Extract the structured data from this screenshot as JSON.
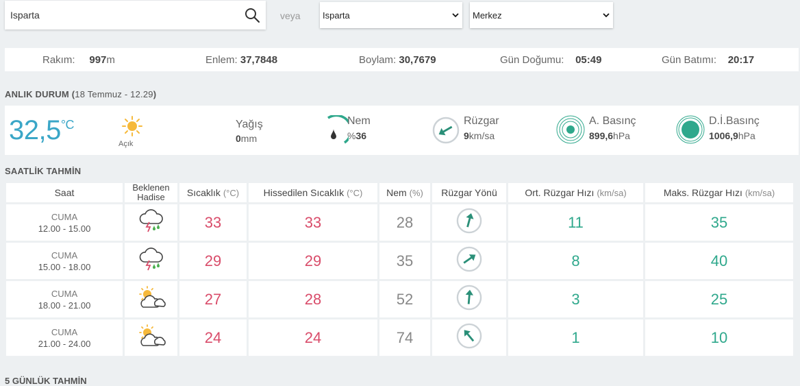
{
  "search": {
    "value": "Isparta"
  },
  "veya": "veya",
  "selects": {
    "province": "Isparta",
    "district": "Merkez"
  },
  "info": {
    "rakim_label": "Rakım:",
    "rakim_value": "997",
    "rakim_unit": "m",
    "enlem_label": "Enlem:",
    "enlem_value": "37,7848",
    "boylam_label": "Boylam:",
    "boylam_value": "30,7679",
    "dogum_label": "Gün Doğumu:",
    "dogum_value": "05:49",
    "batim_label": "Gün Batımı:",
    "batim_value": "20:17"
  },
  "current": {
    "heading": "ANLIK DURUM",
    "date": "18 Temmuz - 12.29",
    "temp": "32,5",
    "temp_unit": "°C",
    "condition": "Açık",
    "rain_label": "Yağış",
    "rain_value": "0",
    "rain_unit": "mm",
    "humidity_label": "Nem",
    "humidity_prefix": "%",
    "humidity_value": "36",
    "wind_label": "Rüzgar",
    "wind_value": "9",
    "wind_unit": "km/sa",
    "pressure_label": "A. Basınç",
    "pressure_value": "899,6",
    "pressure_unit": "hPa",
    "sea_pressure_label": "D.İ.Basınç",
    "sea_pressure_value": "1006,9",
    "sea_pressure_unit": "hPa"
  },
  "hourly": {
    "heading": "SAATLİK TAHMİN",
    "headers": {
      "saat": "Saat",
      "hadise": "Beklenen Hadise",
      "sicaklik": "Sıcaklık",
      "sicaklik_unit": "(°C)",
      "hissedilen": "Hissedilen Sıcaklık",
      "hissedilen_unit": "(°C)",
      "nem": "Nem",
      "nem_unit": "(%)",
      "yon": "Rüzgar Yönü",
      "ort": "Ort. Rüzgar Hızı",
      "ort_unit": "(km/sa)",
      "maks": "Maks. Rüzgar Hızı",
      "maks_unit": "(km/sa)"
    },
    "rows": [
      {
        "day": "CUMA",
        "time": "12.00 - 15.00",
        "icon": "thunderstorm-icon",
        "temp": "33",
        "feels": "33",
        "humidity": "28",
        "wind_dir_deg": 15,
        "avg_wind": "11",
        "max_wind": "35"
      },
      {
        "day": "CUMA",
        "time": "15.00 - 18.00",
        "icon": "thunderstorm-icon",
        "temp": "29",
        "feels": "29",
        "humidity": "35",
        "wind_dir_deg": 55,
        "avg_wind": "8",
        "max_wind": "40"
      },
      {
        "day": "CUMA",
        "time": "18.00 - 21.00",
        "icon": "partly-cloudy-icon",
        "temp": "27",
        "feels": "28",
        "humidity": "52",
        "wind_dir_deg": 5,
        "avg_wind": "3",
        "max_wind": "25"
      },
      {
        "day": "CUMA",
        "time": "21.00 - 24.00",
        "icon": "partly-cloudy-icon",
        "temp": "24",
        "feels": "24",
        "humidity": "74",
        "wind_dir_deg": -40,
        "avg_wind": "1",
        "max_wind": "10"
      }
    ]
  },
  "next_heading": "5 GÜNLÜK TAHMİN",
  "colors": {
    "accent": "#3aa6c7",
    "temp_red": "#d94c6a",
    "wind_green": "#2fa88c",
    "bg": "#edf0f2"
  }
}
